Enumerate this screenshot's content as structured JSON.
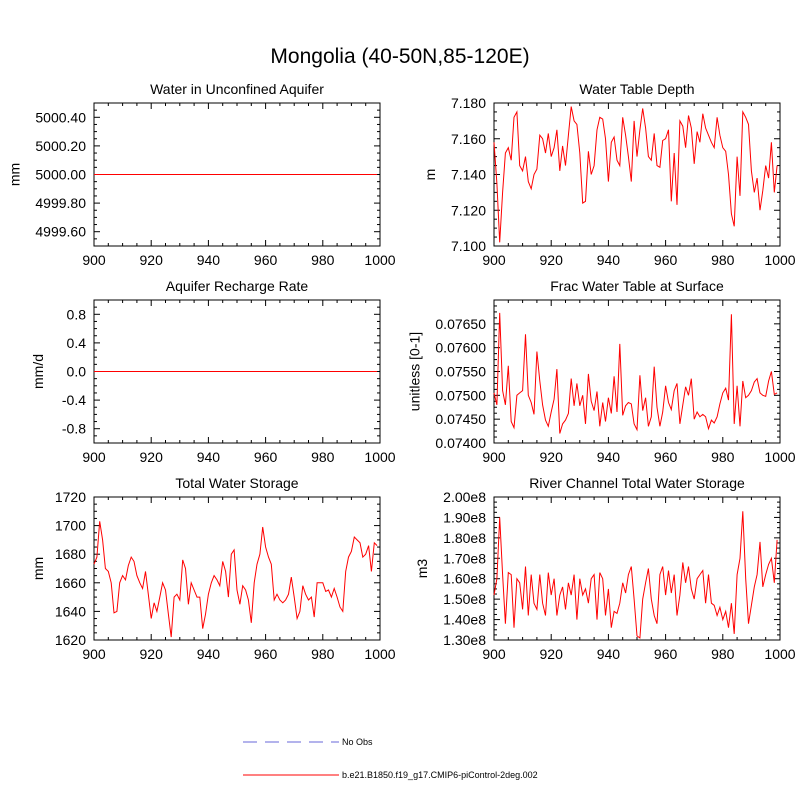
{
  "figure": {
    "title": "Mongolia (40-50N,85-120E)"
  },
  "legend": [
    {
      "label": "No Obs",
      "color": "#9a9ae6",
      "style": "dashed"
    },
    {
      "label": "b.e21.B1850.f19_g17.CMIP6-piControl-2deg.002",
      "color": "#ff0000",
      "style": "solid"
    }
  ],
  "chart_data": [
    {
      "type": "line",
      "title": "Water in Unconfined Aquifer",
      "xlabel": "",
      "ylabel": "mm",
      "xlim": [
        900,
        1000
      ],
      "ylim": [
        4999.5,
        5000.5
      ],
      "xticks": [
        "900",
        "920",
        "940",
        "960",
        "980",
        "1000"
      ],
      "yticks": [
        "4999.60",
        "4999.80",
        "5000.00",
        "5000.20",
        "5000.40"
      ],
      "series": [
        {
          "name": "b.e21.B1850.f19_g17.CMIP6-piControl-2deg.002",
          "color": "#ff0000",
          "x": [
            900,
            999
          ],
          "values": [
            5000.0,
            5000.0
          ]
        }
      ]
    },
    {
      "type": "line",
      "title": "Water Table Depth",
      "xlabel": "",
      "ylabel": "m",
      "xlim": [
        900,
        1000
      ],
      "ylim": [
        7.1,
        7.18
      ],
      "xticks": [
        "900",
        "920",
        "940",
        "960",
        "980",
        "1000"
      ],
      "yticks": [
        "7.100",
        "7.120",
        "7.140",
        "7.160",
        "7.180"
      ],
      "series": [
        {
          "name": "b.e21.B1850.f19_g17.CMIP6-piControl-2deg.002",
          "color": "#ff0000",
          "x_start": 900,
          "values": [
            7.158,
            7.135,
            7.102,
            7.13,
            7.152,
            7.155,
            7.148,
            7.172,
            7.175,
            7.145,
            7.142,
            7.15,
            7.136,
            7.132,
            7.14,
            7.143,
            7.162,
            7.16,
            7.152,
            7.163,
            7.15,
            7.155,
            7.165,
            7.142,
            7.156,
            7.145,
            7.162,
            7.178,
            7.17,
            7.168,
            7.152,
            7.124,
            7.125,
            7.153,
            7.14,
            7.145,
            7.165,
            7.172,
            7.171,
            7.16,
            7.136,
            7.158,
            7.161,
            7.148,
            7.145,
            7.172,
            7.162,
            7.15,
            7.136,
            7.17,
            7.15,
            7.165,
            7.177,
            7.166,
            7.15,
            7.148,
            7.163,
            7.145,
            7.144,
            7.159,
            7.16,
            7.165,
            7.125,
            7.152,
            7.123,
            7.17,
            7.167,
            7.155,
            7.173,
            7.166,
            7.146,
            7.164,
            7.158,
            7.174,
            7.166,
            7.162,
            7.158,
            7.155,
            7.172,
            7.162,
            7.155,
            7.153,
            7.14,
            7.118,
            7.111,
            7.15,
            7.128,
            7.175,
            7.172,
            7.168,
            7.142,
            7.13,
            7.138,
            7.12,
            7.131,
            7.145,
            7.138,
            7.158,
            7.13,
            7.145
          ]
        }
      ]
    },
    {
      "type": "line",
      "title": "Aquifer Recharge Rate",
      "xlabel": "",
      "ylabel": "mm/d",
      "xlim": [
        900,
        1000
      ],
      "ylim": [
        -1.0,
        1.0
      ],
      "xticks": [
        "900",
        "920",
        "940",
        "960",
        "980",
        "1000"
      ],
      "yticks": [
        "-0.8",
        "-0.4",
        "0.0",
        "0.4",
        "0.8"
      ],
      "series": [
        {
          "name": "b.e21.B1850.f19_g17.CMIP6-piControl-2deg.002",
          "color": "#ff0000",
          "x": [
            900,
            999
          ],
          "values": [
            0.0,
            0.0
          ]
        }
      ]
    },
    {
      "type": "line",
      "title": "Frac Water Table at Surface",
      "xlabel": "",
      "ylabel": "unitless [0-1]",
      "xlim": [
        900,
        1000
      ],
      "ylim": [
        0.074,
        0.077
      ],
      "xticks": [
        "900",
        "920",
        "940",
        "960",
        "980",
        "1000"
      ],
      "yticks": [
        "0.07400",
        "0.07450",
        "0.07500",
        "0.07550",
        "0.07600",
        "0.07650"
      ],
      "series": [
        {
          "name": "b.e21.B1850.f19_g17.CMIP6-piControl-2deg.002",
          "color": "#ff0000",
          "x_start": 900,
          "values": [
            0.07505,
            0.0748,
            0.07673,
            0.0751,
            0.0748,
            0.07562,
            0.07445,
            0.07432,
            0.075,
            0.07505,
            0.0751,
            0.07628,
            0.075,
            0.07485,
            0.0746,
            0.07592,
            0.0753,
            0.0748,
            0.07448,
            0.07435,
            0.07465,
            0.07492,
            0.07555,
            0.0742,
            0.0744,
            0.07448,
            0.07462,
            0.07535,
            0.07478,
            0.07525,
            0.07478,
            0.075,
            0.0744,
            0.07545,
            0.07488,
            0.07468,
            0.07508,
            0.07435,
            0.07485,
            0.07445,
            0.07495,
            0.07462,
            0.0754,
            0.07465,
            0.07608,
            0.07458,
            0.07478,
            0.07485,
            0.07482,
            0.0744,
            0.07428,
            0.07542,
            0.07468,
            0.07495,
            0.07435,
            0.07455,
            0.0756,
            0.07475,
            0.07435,
            0.07465,
            0.0752,
            0.07485,
            0.0747,
            0.0751,
            0.07525,
            0.0744,
            0.0748,
            0.07518,
            0.075,
            0.07535,
            0.0745,
            0.07465,
            0.07455,
            0.0746,
            0.07455,
            0.0743,
            0.07448,
            0.07442,
            0.07455,
            0.07482,
            0.07505,
            0.07515,
            0.0749,
            0.0767,
            0.0744,
            0.0752,
            0.07435,
            0.0753,
            0.07495,
            0.075,
            0.0751,
            0.07528,
            0.07535,
            0.07505,
            0.075,
            0.07498,
            0.0753,
            0.0755,
            0.07502,
            0.07505
          ]
        }
      ]
    },
    {
      "type": "line",
      "title": "Total Water Storage",
      "xlabel": "",
      "ylabel": "mm",
      "xlim": [
        900,
        1000
      ],
      "ylim": [
        1620,
        1720
      ],
      "xticks": [
        "900",
        "920",
        "940",
        "960",
        "980",
        "1000"
      ],
      "yticks": [
        "1620",
        "1640",
        "1660",
        "1680",
        "1700",
        "1720"
      ],
      "series": [
        {
          "name": "b.e21.B1850.f19_g17.CMIP6-piControl-2deg.002",
          "color": "#ff0000",
          "x_start": 900,
          "values": [
            1673,
            1678,
            1703,
            1690,
            1670,
            1668,
            1660,
            1639,
            1640,
            1660,
            1665,
            1662,
            1672,
            1678,
            1675,
            1665,
            1660,
            1656,
            1668,
            1652,
            1635,
            1646,
            1640,
            1650,
            1660,
            1655,
            1638,
            1622,
            1650,
            1652,
            1648,
            1676,
            1670,
            1645,
            1660,
            1655,
            1650,
            1650,
            1628,
            1638,
            1652,
            1660,
            1665,
            1662,
            1658,
            1675,
            1668,
            1650,
            1680,
            1683,
            1655,
            1645,
            1658,
            1655,
            1648,
            1632,
            1660,
            1673,
            1680,
            1699,
            1685,
            1678,
            1673,
            1648,
            1652,
            1648,
            1646,
            1648,
            1652,
            1664,
            1650,
            1635,
            1640,
            1658,
            1652,
            1648,
            1650,
            1636,
            1660,
            1660,
            1660,
            1654,
            1655,
            1650,
            1656,
            1650,
            1643,
            1640,
            1668,
            1678,
            1682,
            1692,
            1690,
            1688,
            1678,
            1680,
            1686,
            1668,
            1688,
            1686
          ]
        }
      ]
    },
    {
      "type": "line",
      "title": "River Channel Total Water Storage",
      "xlabel": "",
      "ylabel": "m3",
      "xlim": [
        900,
        1000
      ],
      "ylim": [
        130000000.0,
        200000000.0
      ],
      "xticks": [
        "900",
        "920",
        "940",
        "960",
        "980",
        "1000"
      ],
      "yticks": [
        "1.30e8",
        "1.40e8",
        "1.50e8",
        "1.60e8",
        "1.70e8",
        "1.80e8",
        "1.90e8",
        "2.00e8"
      ],
      "series": [
        {
          "name": "b.e21.B1850.f19_g17.CMIP6-piControl-2deg.002",
          "color": "#ff0000",
          "x_start": 900,
          "values": [
            152000000.0,
            160000000.0,
            190000000.0,
            162000000.0,
            138000000.0,
            163000000.0,
            162000000.0,
            136000000.0,
            160000000.0,
            158000000.0,
            145000000.0,
            166000000.0,
            142000000.0,
            162000000.0,
            148000000.0,
            145000000.0,
            162000000.0,
            148000000.0,
            142000000.0,
            163000000.0,
            152000000.0,
            160000000.0,
            142000000.0,
            152000000.0,
            156000000.0,
            145000000.0,
            158000000.0,
            152000000.0,
            162000000.0,
            140000000.0,
            160000000.0,
            152000000.0,
            155000000.0,
            148000000.0,
            160000000.0,
            162000000.0,
            140000000.0,
            163000000.0,
            160000000.0,
            142000000.0,
            155000000.0,
            136000000.0,
            144000000.0,
            143000000.0,
            148000000.0,
            158000000.0,
            153000000.0,
            162000000.0,
            166000000.0,
            150000000.0,
            132000000.0,
            131000000.0,
            150000000.0,
            158000000.0,
            165000000.0,
            150000000.0,
            142000000.0,
            138000000.0,
            162000000.0,
            166000000.0,
            152000000.0,
            164000000.0,
            153000000.0,
            162000000.0,
            142000000.0,
            152000000.0,
            168000000.0,
            158000000.0,
            166000000.0,
            155000000.0,
            150000000.0,
            160000000.0,
            162000000.0,
            164000000.0,
            148000000.0,
            162000000.0,
            148000000.0,
            147000000.0,
            142000000.0,
            146000000.0,
            140000000.0,
            144000000.0,
            136000000.0,
            148000000.0,
            133000000.0,
            162000000.0,
            170000000.0,
            193000000.0,
            160000000.0,
            138000000.0,
            147000000.0,
            156000000.0,
            162000000.0,
            178000000.0,
            156000000.0,
            162000000.0,
            167000000.0,
            170000000.0,
            158000000.0,
            179000000.0
          ]
        }
      ]
    }
  ]
}
